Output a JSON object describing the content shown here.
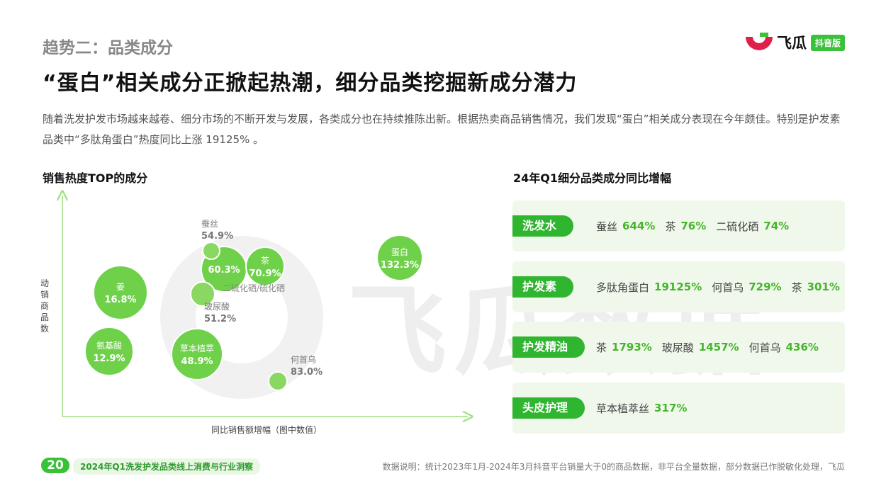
{
  "section_title": "趋势二：品类成分",
  "headline": "“蛋白”相关成分正掀起热潮，细分品类挖掘新成分潜力",
  "intro": "随着洗发护发市场越来越卷、细分市场的不断开发与发展，各类成分也在持续推陈出新。根据热卖商品销售情况，我们发现“蛋白”相关成分表现在今年颇佳。特别是护发素品类中“多肽角蛋白”热度同比上涨 19125% 。",
  "logo": {
    "name": "飞瓜",
    "tag": "抖音版"
  },
  "watermark": "飞瓜数据",
  "left_chart_title": "销售热度TOP的成分",
  "right_chart_title": "24年Q1细分品类成分同比增幅",
  "colors": {
    "accent": "#38c238",
    "bubble": "#6fd14a",
    "bubble_small": "#8ad862",
    "axis": "#9ee07e"
  },
  "chart_data": {
    "type": "scatter",
    "title": "销售热度TOP的成分",
    "xlabel": "同比销售额增幅（图中数值）",
    "ylabel": "动销商品数",
    "points": [
      {
        "label": "姜",
        "value": "16.8%",
        "x": 16.8,
        "y": 0.6,
        "size": 38,
        "text": "inside"
      },
      {
        "label": "氨基酸",
        "value": "12.9%",
        "x": 12.9,
        "y": 0.3,
        "size": 34,
        "text": "inside"
      },
      {
        "label": "草本植萃",
        "value": "48.9%",
        "x": 48.9,
        "y": 0.28,
        "size": 36,
        "text": "inside"
      },
      {
        "label": "",
        "value": "60.3%",
        "x": 60.3,
        "y": 0.73,
        "size": 32,
        "text": "inside"
      },
      {
        "label": "茶",
        "value": "70.9%",
        "x": 70.9,
        "y": 0.74,
        "size": 27,
        "text": "inside"
      },
      {
        "label": "蛋白",
        "value": "132.3%",
        "x": 132.3,
        "y": 0.77,
        "size": 32,
        "text": "inside"
      },
      {
        "label": "蚕丝",
        "value": "54.9%",
        "x": 54.9,
        "y": 0.86,
        "size": 12,
        "text": "above"
      },
      {
        "label": "玻尿酸",
        "value": "51.2%",
        "x": 51.2,
        "y": 0.58,
        "size": 17,
        "text": "below"
      },
      {
        "label": "何首乌",
        "value": "83.0%",
        "x": 83.0,
        "y": 0.15,
        "size": 13,
        "text": "right"
      }
    ],
    "overlap_label": "二硫化硒/硫化硒"
  },
  "growth_rows": [
    {
      "category": "洗发水",
      "items": [
        {
          "name": "蚕丝",
          "pct": "644%"
        },
        {
          "name": "茶",
          "pct": "76%"
        },
        {
          "name": "二硫化硒",
          "pct": "74%"
        }
      ]
    },
    {
      "category": "护发素",
      "items": [
        {
          "name": "多肽角蛋白",
          "pct": "19125%"
        },
        {
          "name": "何首乌",
          "pct": "729%"
        },
        {
          "name": "茶",
          "pct": "301%"
        }
      ]
    },
    {
      "category": "护发精油",
      "items": [
        {
          "name": "茶",
          "pct": "1793%"
        },
        {
          "name": "玻尿酸",
          "pct": "1457%"
        },
        {
          "name": "何首乌",
          "pct": "436%"
        }
      ]
    },
    {
      "category": "头皮护理",
      "items": [
        {
          "name": "草本植萃丝",
          "pct": "317%"
        }
      ]
    }
  ],
  "footer": {
    "page_number": "20",
    "report_title": "2024年Q1洗发护发品类线上消费与行业洞察",
    "note": "数据说明：统计2023年1月-2024年3月抖音平台销量大于0的商品数据，非平台全量数据，部分数据已作脱敏化处理，飞瓜"
  }
}
